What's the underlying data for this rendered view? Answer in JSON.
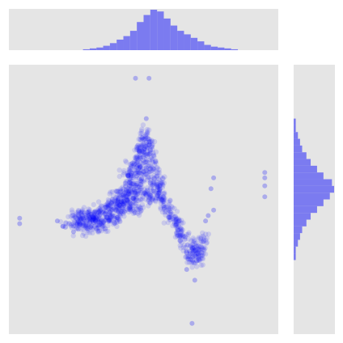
{
  "chart_data": {
    "type": "scatter",
    "marginals": {
      "top": "histogram",
      "right": "histogram"
    },
    "grid": false,
    "legend": "none",
    "axis_labels_visible": false,
    "colors": {
      "points": "#0000ff",
      "histogram": "#7b7bf0",
      "panel_background": "#e5e5e5",
      "figure_background": "#ffffff"
    },
    "point_alpha": 0.12,
    "xlim": [
      0,
      100
    ],
    "ylim": [
      0,
      100
    ],
    "cluster_points": [
      [
        28,
        42
      ],
      [
        30,
        43
      ],
      [
        33,
        45
      ],
      [
        36,
        47
      ],
      [
        38,
        45
      ],
      [
        40,
        48
      ],
      [
        42,
        50
      ],
      [
        44,
        52
      ],
      [
        46,
        55
      ],
      [
        47,
        60
      ],
      [
        48,
        65
      ],
      [
        49,
        70
      ],
      [
        50,
        74
      ],
      [
        51,
        72
      ],
      [
        52,
        68
      ],
      [
        53,
        64
      ],
      [
        54,
        60
      ],
      [
        55,
        55
      ],
      [
        56,
        52
      ],
      [
        58,
        48
      ],
      [
        60,
        44
      ],
      [
        62,
        40
      ],
      [
        64,
        37
      ],
      [
        66,
        34
      ],
      [
        68,
        31
      ],
      [
        70,
        30
      ],
      [
        71,
        33
      ],
      [
        72,
        36
      ],
      [
        70,
        28
      ],
      [
        67,
        29
      ],
      [
        35,
        40
      ],
      [
        32,
        41
      ],
      [
        30,
        45
      ],
      [
        26,
        44
      ],
      [
        24,
        43
      ],
      [
        22,
        41
      ],
      [
        40,
        44
      ],
      [
        42,
        46
      ],
      [
        45,
        50
      ],
      [
        47,
        53
      ],
      [
        49,
        57
      ],
      [
        50,
        61
      ],
      [
        51,
        66
      ],
      [
        52,
        71
      ],
      [
        50,
        68
      ],
      [
        48,
        62
      ],
      [
        46,
        58
      ],
      [
        44,
        55
      ],
      [
        43,
        49
      ],
      [
        41,
        47
      ],
      [
        39,
        43
      ],
      [
        37,
        42
      ],
      [
        34,
        42
      ],
      [
        31,
        40
      ],
      [
        29,
        39
      ],
      [
        27,
        40
      ],
      [
        44,
        60
      ],
      [
        46,
        63
      ],
      [
        48,
        68
      ],
      [
        52,
        62
      ],
      [
        54,
        57
      ],
      [
        56,
        56
      ],
      [
        57,
        50
      ],
      [
        59,
        46
      ],
      [
        61,
        43
      ],
      [
        63,
        41
      ],
      [
        65,
        36
      ],
      [
        69,
        33
      ],
      [
        71,
        31
      ],
      [
        68,
        27
      ],
      [
        45,
        48
      ],
      [
        47,
        51
      ],
      [
        49,
        54
      ],
      [
        51,
        58
      ],
      [
        53,
        53
      ],
      [
        55,
        51
      ],
      [
        52,
        50
      ],
      [
        50,
        52
      ],
      [
        48,
        47
      ],
      [
        46,
        46
      ],
      [
        43,
        53
      ],
      [
        41,
        51
      ],
      [
        39,
        50
      ],
      [
        38,
        47
      ],
      [
        36,
        45
      ],
      [
        34,
        46
      ],
      [
        32,
        44
      ],
      [
        30,
        42
      ],
      [
        28,
        44
      ],
      [
        25,
        42
      ]
    ],
    "outliers": [
      [
        47,
        95
      ],
      [
        52,
        95
      ],
      [
        51,
        80
      ],
      [
        4,
        43
      ],
      [
        4,
        41
      ],
      [
        18,
        42
      ],
      [
        20,
        40
      ],
      [
        24,
        38
      ],
      [
        76,
        58
      ],
      [
        75,
        54
      ],
      [
        76,
        46
      ],
      [
        74,
        44
      ],
      [
        95,
        60
      ],
      [
        95,
        58
      ],
      [
        95,
        55
      ],
      [
        95,
        51
      ],
      [
        69,
        20
      ],
      [
        68,
        4
      ],
      [
        66,
        24
      ],
      [
        73,
        42
      ]
    ],
    "histogram_top": {
      "bins": 40,
      "counts": [
        0,
        0,
        0,
        0,
        0,
        0,
        0,
        0,
        0,
        0,
        0,
        1,
        2,
        3,
        5,
        8,
        12,
        16,
        22,
        32,
        40,
        46,
        44,
        36,
        28,
        22,
        18,
        14,
        10,
        6,
        4,
        3,
        2,
        1,
        0,
        0,
        0,
        0,
        0,
        0
      ],
      "range": [
        0,
        100
      ]
    },
    "histogram_right": {
      "bins": 40,
      "counts": [
        0,
        0,
        0,
        0,
        0,
        0,
        0,
        0,
        0,
        0,
        0,
        1,
        1,
        2,
        3,
        4,
        6,
        8,
        11,
        14,
        17,
        19,
        18,
        14,
        11,
        8,
        6,
        4,
        3,
        2,
        1,
        1,
        0,
        0,
        0,
        0,
        0,
        0,
        0,
        0
      ],
      "range": [
        0,
        100
      ]
    }
  }
}
